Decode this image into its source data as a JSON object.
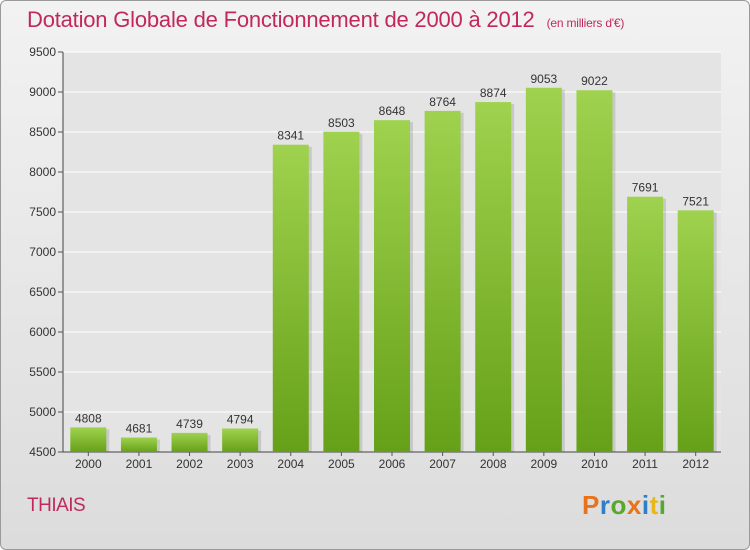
{
  "header": {
    "title": "Dotation Globale de Fonctionnement de 2000 à 2012",
    "unit": "(en milliers d'€)"
  },
  "footer": {
    "commune": "THIAIS",
    "logo_text": "Proxiti",
    "logo_colors": [
      "#e8731a",
      "#2f7ec8",
      "#58a82c",
      "#e8731a",
      "#2f7ec8",
      "#e8b81a",
      "#58a82c"
    ]
  },
  "colors": {
    "accent": "#c0295a",
    "bar_top": "#9fd24e",
    "bar_bottom": "#66a019",
    "grid": "#ffffff"
  },
  "chart_data": {
    "type": "bar",
    "title": "Dotation Globale de Fonctionnement de 2000 à 2012",
    "subtitle": "(en milliers d'€)",
    "categories": [
      "2000",
      "2001",
      "2002",
      "2003",
      "2004",
      "2005",
      "2006",
      "2007",
      "2008",
      "2009",
      "2010",
      "2011",
      "2012"
    ],
    "values": [
      4808,
      4681,
      4739,
      4794,
      8341,
      8503,
      8648,
      8764,
      8874,
      9053,
      9022,
      7691,
      7521
    ],
    "ylim": [
      4500,
      9500
    ],
    "yticks": [
      4500,
      5000,
      5500,
      6000,
      6500,
      7000,
      7500,
      8000,
      8500,
      9000,
      9500
    ],
    "grid": true,
    "data_labels": true,
    "xlabel": "",
    "ylabel": ""
  }
}
